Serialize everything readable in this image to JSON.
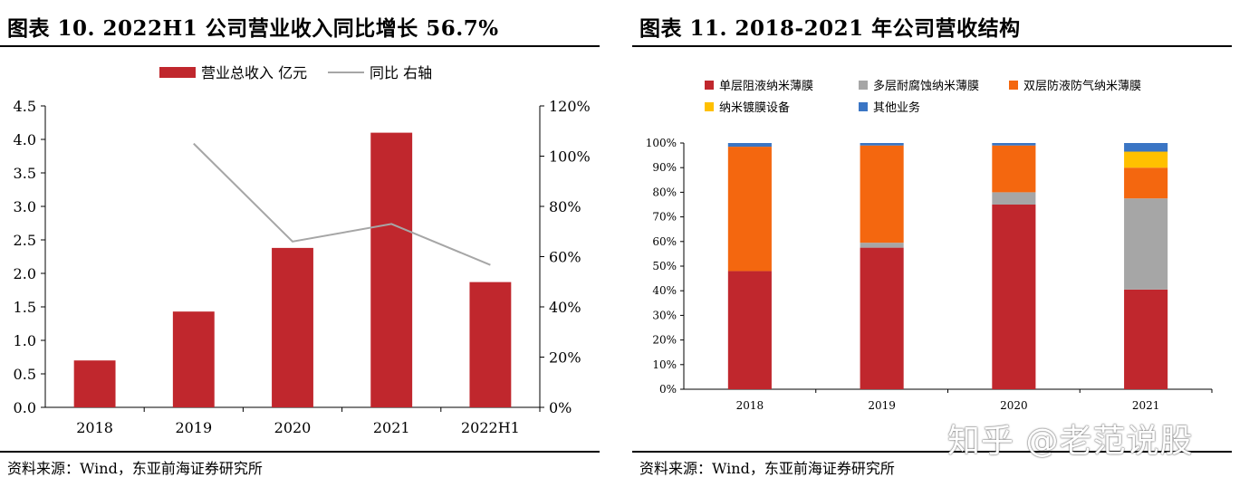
{
  "left_panel": {
    "title": "图表 10. 2022H1 公司营业收入同比增长 56.7%",
    "source": "资料来源：Wind，东亚前海证券研究所"
  },
  "right_panel": {
    "title": "图表 11. 2018-2021 年公司营收结构",
    "source": "资料来源：Wind，东亚前海证券研究所"
  },
  "watermark": "知乎 @老范说股",
  "colors": {
    "revenue_bar": "#c0272d",
    "yoy_line": "#a6a6a6",
    "seg_single": "#c0272d",
    "seg_multi": "#a6a6a6",
    "seg_double": "#f4670f",
    "seg_equipment": "#ffc000",
    "seg_other": "#3a75c4"
  },
  "chart_data": [
    {
      "type": "bar",
      "categories": [
        "2018",
        "2019",
        "2020",
        "2021",
        "2022H1"
      ],
      "series": [
        {
          "name": "营业总收入 亿元",
          "type": "bar",
          "axis": "left",
          "values": [
            0.7,
            1.43,
            2.38,
            4.1,
            1.87
          ]
        },
        {
          "name": "同比 右轴",
          "type": "line",
          "axis": "right",
          "values": [
            null,
            1.05,
            0.66,
            0.73,
            0.567
          ]
        }
      ],
      "ylim": [
        0,
        4.5
      ],
      "yticks": [
        "0.0",
        "0.5",
        "1.0",
        "1.5",
        "2.0",
        "2.5",
        "3.0",
        "3.5",
        "4.0",
        "4.5"
      ],
      "y2lim": [
        0,
        1.2
      ],
      "y2ticks": [
        "0%",
        "20%",
        "40%",
        "60%",
        "80%",
        "100%",
        "120%"
      ],
      "legend_position": "top",
      "grid": false
    },
    {
      "type": "bar",
      "stacked": true,
      "categories": [
        "2018",
        "2019",
        "2020",
        "2021"
      ],
      "series": [
        {
          "name": "单层阻液纳米薄膜",
          "values": [
            0.48,
            0.575,
            0.75,
            0.405
          ]
        },
        {
          "name": "多层耐腐蚀纳米薄膜",
          "values": [
            0.0,
            0.02,
            0.05,
            0.37
          ]
        },
        {
          "name": "双层防液防气纳米薄膜",
          "values": [
            0.505,
            0.395,
            0.19,
            0.125
          ]
        },
        {
          "name": "纳米镀膜设备",
          "values": [
            0.0,
            0.0,
            0.0,
            0.065
          ]
        },
        {
          "name": "其他业务",
          "values": [
            0.015,
            0.01,
            0.01,
            0.035
          ]
        }
      ],
      "ylim": [
        0,
        1.0
      ],
      "yticks": [
        "0%",
        "10%",
        "20%",
        "30%",
        "40%",
        "50%",
        "60%",
        "70%",
        "80%",
        "90%",
        "100%"
      ],
      "legend_position": "top",
      "grid": false
    }
  ]
}
